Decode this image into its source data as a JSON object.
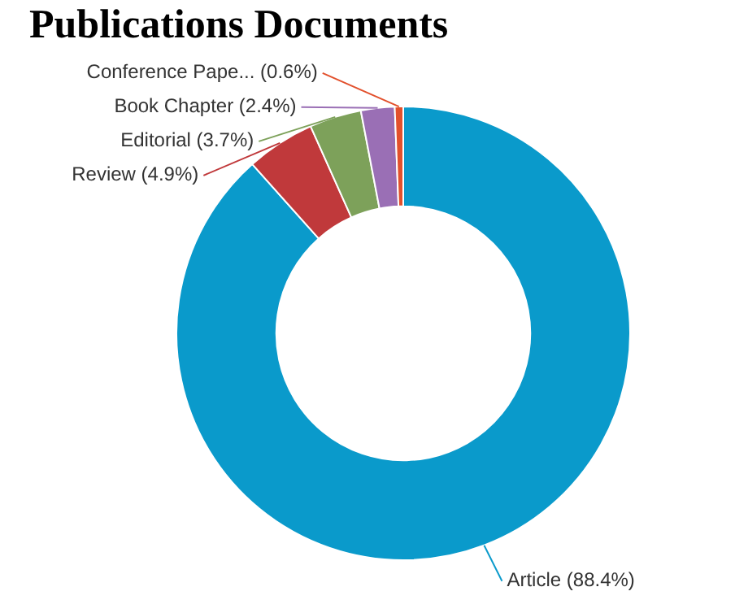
{
  "chart_data": {
    "type": "donut",
    "title": "Publications Documents",
    "categories": [
      "Article (88.4%)",
      "Review (4.9%)",
      "Editorial (3.7%)",
      "Book Chapter (2.4%)",
      "Conference Pape... (0.6%)"
    ],
    "values": [
      88.4,
      4.9,
      3.7,
      2.4,
      0.6
    ],
    "colors": [
      "#0a9acb",
      "#c0393b",
      "#7da15a",
      "#9a6fb5",
      "#e2502c"
    ],
    "legend": false
  }
}
